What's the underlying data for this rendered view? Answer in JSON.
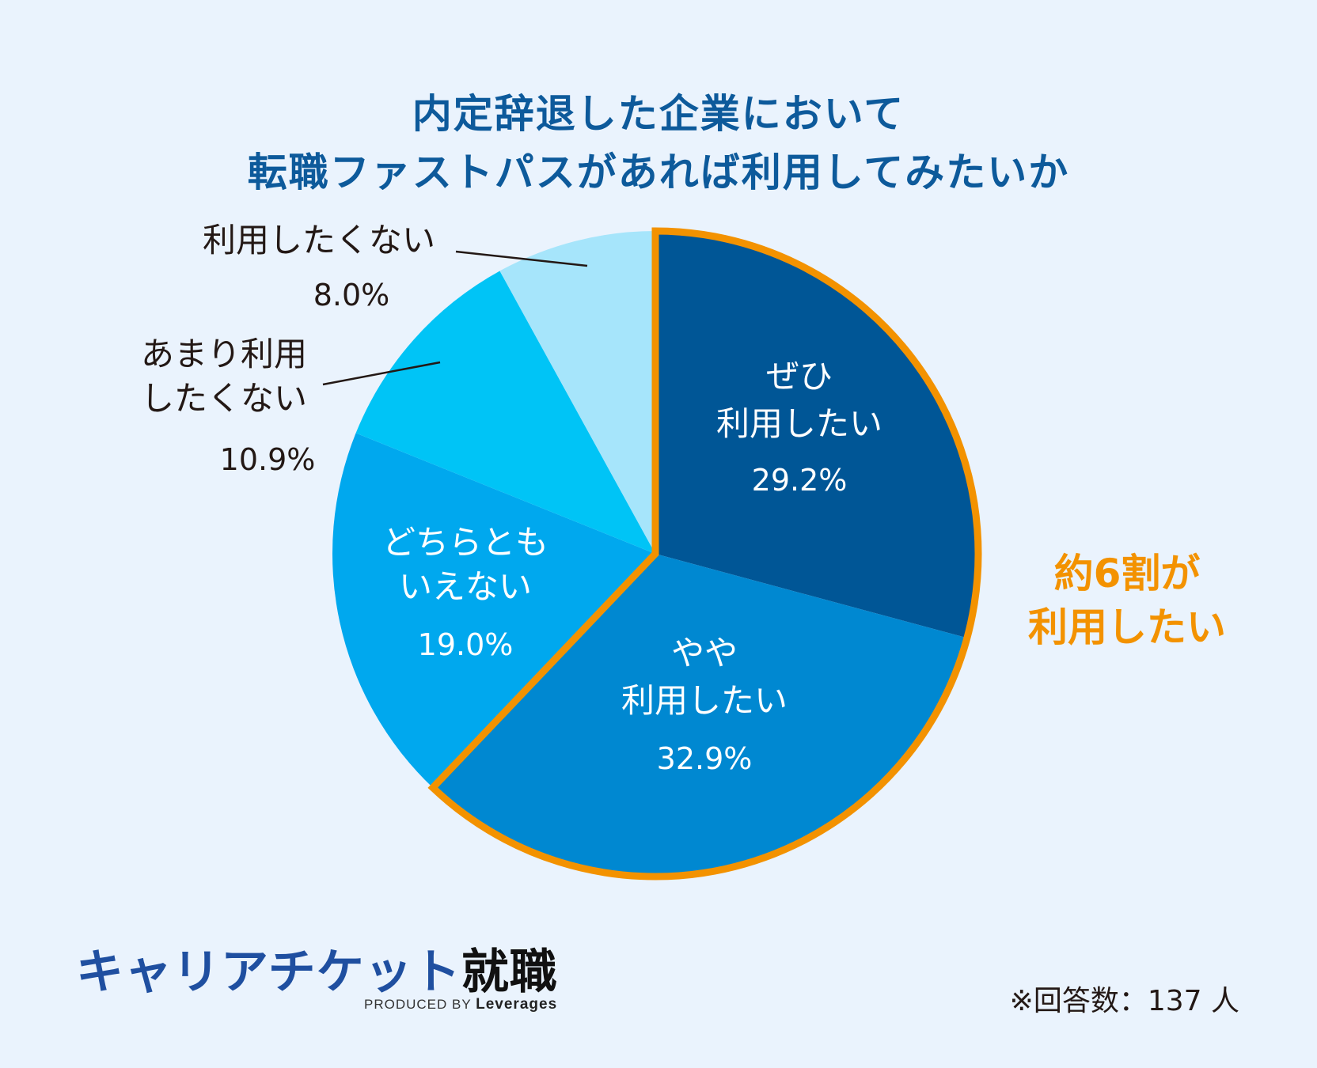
{
  "title_line1": "内定辞退した企業において",
  "title_line2": "転職ファストパスがあれば利用してみたいか",
  "chart_data": {
    "type": "pie",
    "title": "内定辞退した企業において 転職ファストパスがあれば利用してみたいか",
    "start": "top",
    "direction": "clockwise",
    "slices": [
      {
        "label_lines": [
          "ぜひ",
          "利用したい"
        ],
        "value": 29.2,
        "value_label": "29.2%",
        "color": "#005696",
        "label_color": "#ffffff",
        "highlight": true
      },
      {
        "label_lines": [
          "やや",
          "利用したい"
        ],
        "value": 32.9,
        "value_label": "32.9%",
        "color": "#0088d1",
        "label_color": "#ffffff",
        "highlight": true
      },
      {
        "label_lines": [
          "どちらとも",
          "いえない"
        ],
        "value": 19.0,
        "value_label": "19.0%",
        "color": "#00a8ee",
        "label_color": "#ffffff",
        "highlight": false
      },
      {
        "label_lines": [
          "あまり利用",
          "したくない"
        ],
        "value": 10.9,
        "value_label": "10.9%",
        "color": "#00c4f6",
        "label_color": "#231815",
        "highlight": false
      },
      {
        "label_lines": [
          "利用したくない"
        ],
        "value": 8.0,
        "value_label": "8.0%",
        "color": "#a6e5fb",
        "label_color": "#231815",
        "highlight": false
      }
    ],
    "highlight_color": "#f39200",
    "annotation_lines": [
      "約6割が",
      "利用したい"
    ],
    "annotation_color": "#f39200"
  },
  "note": "※回答数：137 人",
  "logo": {
    "main": "キャリアチケット",
    "strong": "就職",
    "produced_prefix": "PRODUCED BY",
    "produced_brand": "Leverages"
  }
}
